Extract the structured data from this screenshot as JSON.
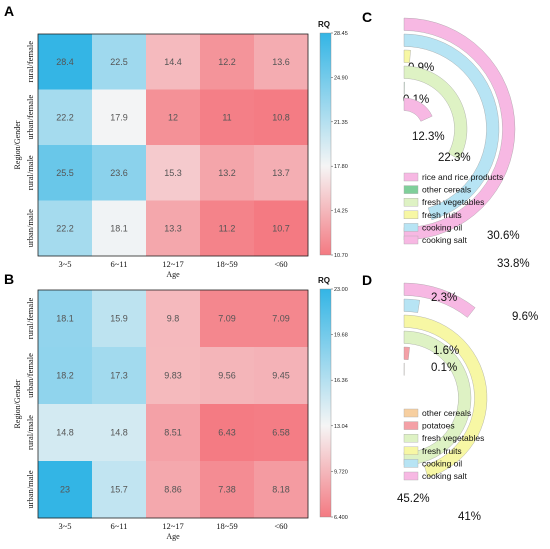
{
  "panels": {
    "A": "A",
    "B": "B",
    "C": "C",
    "D": "D"
  },
  "chart_data": [
    {
      "id": "A",
      "type": "heatmap",
      "title": "",
      "xlabel": "Age",
      "ylabel": "Region/Gender",
      "x": [
        "3~5",
        "6~11",
        "12~17",
        "18~59",
        "<60"
      ],
      "y": [
        "rural/female",
        "urban/female",
        "rural/male",
        "urban/male"
      ],
      "values": [
        [
          28.4,
          22.5,
          14.4,
          12.2,
          13.6
        ],
        [
          22.2,
          17.9,
          12,
          11,
          10.8
        ],
        [
          25.5,
          23.6,
          15.3,
          13.2,
          13.7
        ],
        [
          22.2,
          18.1,
          13.3,
          11.2,
          10.7
        ]
      ],
      "labels": [
        [
          "28.4",
          "22.5",
          "14.4",
          "12.2",
          "13.6"
        ],
        [
          "22.2",
          "17.9",
          "12",
          "11",
          "10.8"
        ],
        [
          "25.5",
          "23.6",
          "15.3",
          "13.2",
          "13.7"
        ],
        [
          "22.2",
          "18.1",
          "13.3",
          "11.2",
          "10.7"
        ]
      ],
      "colorbar": {
        "title": "RQ",
        "min": 10.7,
        "max": 28.45,
        "ticks": [
          "28.45",
          "24.90",
          "21.35",
          "17.80",
          "14.25",
          "10.70"
        ],
        "low_color": "#f47a82",
        "mid_color": "#f5f5f5",
        "high_color": "#33b5e5"
      }
    },
    {
      "id": "B",
      "type": "heatmap",
      "title": "",
      "xlabel": "Age",
      "ylabel": "Region/Gender",
      "x": [
        "3~5",
        "6~11",
        "12~17",
        "18~59",
        "<60"
      ],
      "y": [
        "rural/female",
        "urban/female",
        "rural/male",
        "urban/male"
      ],
      "values": [
        [
          18.1,
          15.9,
          9.8,
          7.09,
          7.09
        ],
        [
          18.2,
          17.3,
          9.83,
          9.56,
          9.45
        ],
        [
          14.8,
          14.8,
          8.51,
          6.43,
          6.58
        ],
        [
          23,
          15.7,
          8.86,
          7.38,
          8.18
        ]
      ],
      "labels": [
        [
          "18.1",
          "15.9",
          "9.8",
          "7.09",
          "7.09"
        ],
        [
          "18.2",
          "17.3",
          "9.83",
          "9.56",
          "9.45"
        ],
        [
          "14.8",
          "14.8",
          "8.51",
          "6.43",
          "6.58"
        ],
        [
          "23",
          "15.7",
          "8.86",
          "7.38",
          "8.18"
        ]
      ],
      "colorbar": {
        "title": "RQ",
        "min": 6.4,
        "max": 23.0,
        "ticks": [
          "23.00",
          "19.68",
          "16.36",
          "13.04",
          "9.720",
          "6.400"
        ],
        "low_color": "#f47a82",
        "mid_color": "#f5f5f5",
        "high_color": "#33b5e5"
      }
    },
    {
      "id": "C",
      "type": "radial-bar",
      "title": "",
      "max_value": 33.8,
      "bars": [
        {
          "name": "cooking salt",
          "value": 33.8,
          "label": "33.8%",
          "color": "#f7b8e3"
        },
        {
          "name": "cooking oil",
          "value": 30.6,
          "label": "30.6%",
          "color": "#b7e4f4"
        },
        {
          "name": "fresh fruits",
          "value": 0.9,
          "label": "0.9%",
          "color": "#f7f7a4"
        },
        {
          "name": "fresh vegetables",
          "value": 22.3,
          "label": "22.3%",
          "color": "#def2c4"
        },
        {
          "name": "other cereals",
          "value": 0.1,
          "label": "0.1%",
          "color": "#7fcf9a"
        },
        {
          "name": "rice and rice products",
          "value": 12.3,
          "label": "12.3%",
          "color": "#f7b8e3"
        }
      ],
      "legend": [
        {
          "label": "rice and rice products",
          "color": "#f7b8e3"
        },
        {
          "label": "other cereals",
          "color": "#7fcf9a"
        },
        {
          "label": "fresh vegetables",
          "color": "#def2c4"
        },
        {
          "label": "fresh fruits",
          "color": "#f7f7a4"
        },
        {
          "label": "cooking oil",
          "color": "#b7e4f4"
        },
        {
          "label": "cooking salt",
          "color": "#f7b8e3"
        }
      ]
    },
    {
      "id": "D",
      "type": "radial-bar",
      "title": "",
      "max_value": 45.2,
      "bars": [
        {
          "name": "cooking salt",
          "value": 9.6,
          "label": "9.6%",
          "color": "#f7b8e3"
        },
        {
          "name": "cooking oil",
          "value": 2.3,
          "label": "2.3%",
          "color": "#b7e4f4"
        },
        {
          "name": "fresh fruits",
          "value": 41.0,
          "label": "41%",
          "color": "#f7f7a4"
        },
        {
          "name": "fresh vegetables",
          "value": 45.2,
          "label": "45.2%",
          "color": "#def2c4"
        },
        {
          "name": "potatoes",
          "value": 1.6,
          "label": "1.6%",
          "color": "#f4a0a6"
        },
        {
          "name": "other cereals",
          "value": 0.1,
          "label": "0.1%",
          "color": "#f7cfa0"
        }
      ],
      "legend": [
        {
          "label": "other cereals",
          "color": "#f7cfa0"
        },
        {
          "label": "potatoes",
          "color": "#f4a0a6"
        },
        {
          "label": "fresh vegetables",
          "color": "#def2c4"
        },
        {
          "label": "fresh fruits",
          "color": "#f7f7a4"
        },
        {
          "label": "cooking oil",
          "color": "#b7e4f4"
        },
        {
          "label": "cooking salt",
          "color": "#f7b8e3"
        }
      ]
    }
  ]
}
